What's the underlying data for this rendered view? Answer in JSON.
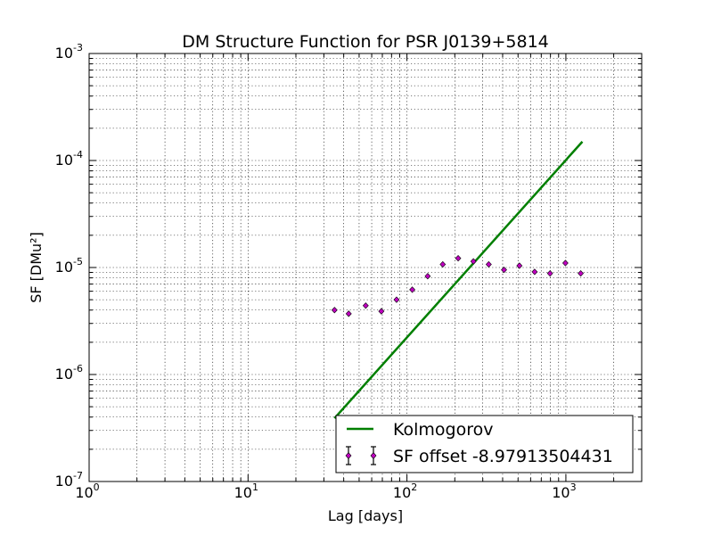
{
  "chart_data": {
    "type": "scatter",
    "title": "DM Structure Function for PSR J0139+5814",
    "xlabel": "Lag [days]",
    "ylabel": "SF [DMu²]",
    "xscale": "log",
    "yscale": "log",
    "xlim": [
      1,
      3000
    ],
    "ylim": [
      1e-07,
      0.001
    ],
    "grid": true,
    "legend_position": "lower-right",
    "x_ticks": [
      {
        "base": "10",
        "exp": "0",
        "value": 1
      },
      {
        "base": "10",
        "exp": "1",
        "value": 10
      },
      {
        "base": "10",
        "exp": "2",
        "value": 100
      },
      {
        "base": "10",
        "exp": "3",
        "value": 1000
      }
    ],
    "y_ticks": [
      {
        "base": "10",
        "exp": "-7",
        "value": 1e-07
      },
      {
        "base": "10",
        "exp": "-6",
        "value": 1e-06
      },
      {
        "base": "10",
        "exp": "-5",
        "value": 1e-05
      },
      {
        "base": "10",
        "exp": "-4",
        "value": 0.0001
      },
      {
        "base": "10",
        "exp": "-3",
        "value": 0.001
      }
    ],
    "series": [
      {
        "name": "Kolmogorov",
        "kind": "line",
        "color": "#007f00",
        "x": [
          35,
          1270
        ],
        "y": [
          3.9e-07,
          0.00015
        ]
      },
      {
        "name": "SF offset -8.97913504431",
        "kind": "errorbar-points",
        "color": "#bf00bf",
        "x": [
          35,
          43,
          55,
          69,
          86,
          108,
          135,
          168,
          210,
          262,
          327,
          408,
          510,
          636,
          795,
          993,
          1240
        ],
        "y": [
          4e-06,
          3.7e-06,
          4.4e-06,
          3.9e-06,
          5e-06,
          6.2e-06,
          8.3e-06,
          1.07e-05,
          1.22e-05,
          1.14e-05,
          1.07e-05,
          9.5e-06,
          1.04e-05,
          9.1e-06,
          8.8e-06,
          1.1e-05,
          8.8e-06
        ]
      }
    ]
  }
}
